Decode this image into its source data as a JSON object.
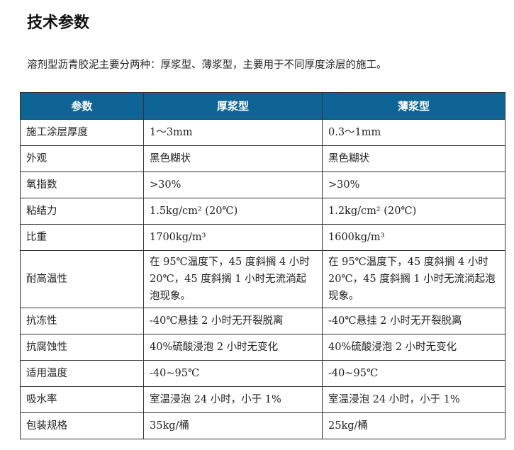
{
  "title": "技术参数",
  "intro": "溶剂型沥青胶泥主要分两种：厚浆型、薄浆型，主要用于不同厚度涂层的施工。",
  "table": {
    "headers": [
      "参数",
      "厚浆型",
      "薄浆型"
    ],
    "rows": [
      [
        "施工涂层厚度",
        "1～3mm",
        "0.3～1mm"
      ],
      [
        "外观",
        "黑色糊状",
        "黑色糊状"
      ],
      [
        "氧指数",
        ">30%",
        ">30%"
      ],
      [
        "粘结力",
        "1.5kg/cm² (20℃)",
        "1.2kg/cm² (20℃)"
      ],
      [
        "比重",
        "1700kg/m³",
        "1600kg/m³"
      ],
      [
        "耐高温性",
        "在 95℃温度下，45 度斜搁 4 小时 20℃，45 度斜搁 1 小时无流淌起泡现象。",
        "在 95℃温度下，45 度斜搁 4 小时 20℃，45 度斜搁 1 小时无流淌起泡现象。"
      ],
      [
        "抗冻性",
        "-40℃悬挂 2 小时无开裂脱离",
        "-40℃悬挂 2 小时无开裂脱离"
      ],
      [
        "抗腐蚀性",
        "40%硫酸浸泡 2 小时无变化",
        "40%硫酸浸泡 2 小时无变化"
      ],
      [
        "适用温度",
        "-40~95℃",
        "-40~95℃"
      ],
      [
        "吸水率",
        "室温浸泡 24 小时，小于 1%",
        "室温浸泡 24 小时，小于 1%"
      ],
      [
        "包装规格",
        "35kg/桶",
        "25kg/桶"
      ]
    ]
  },
  "colors": {
    "header_bg": "#0f6496"
  }
}
